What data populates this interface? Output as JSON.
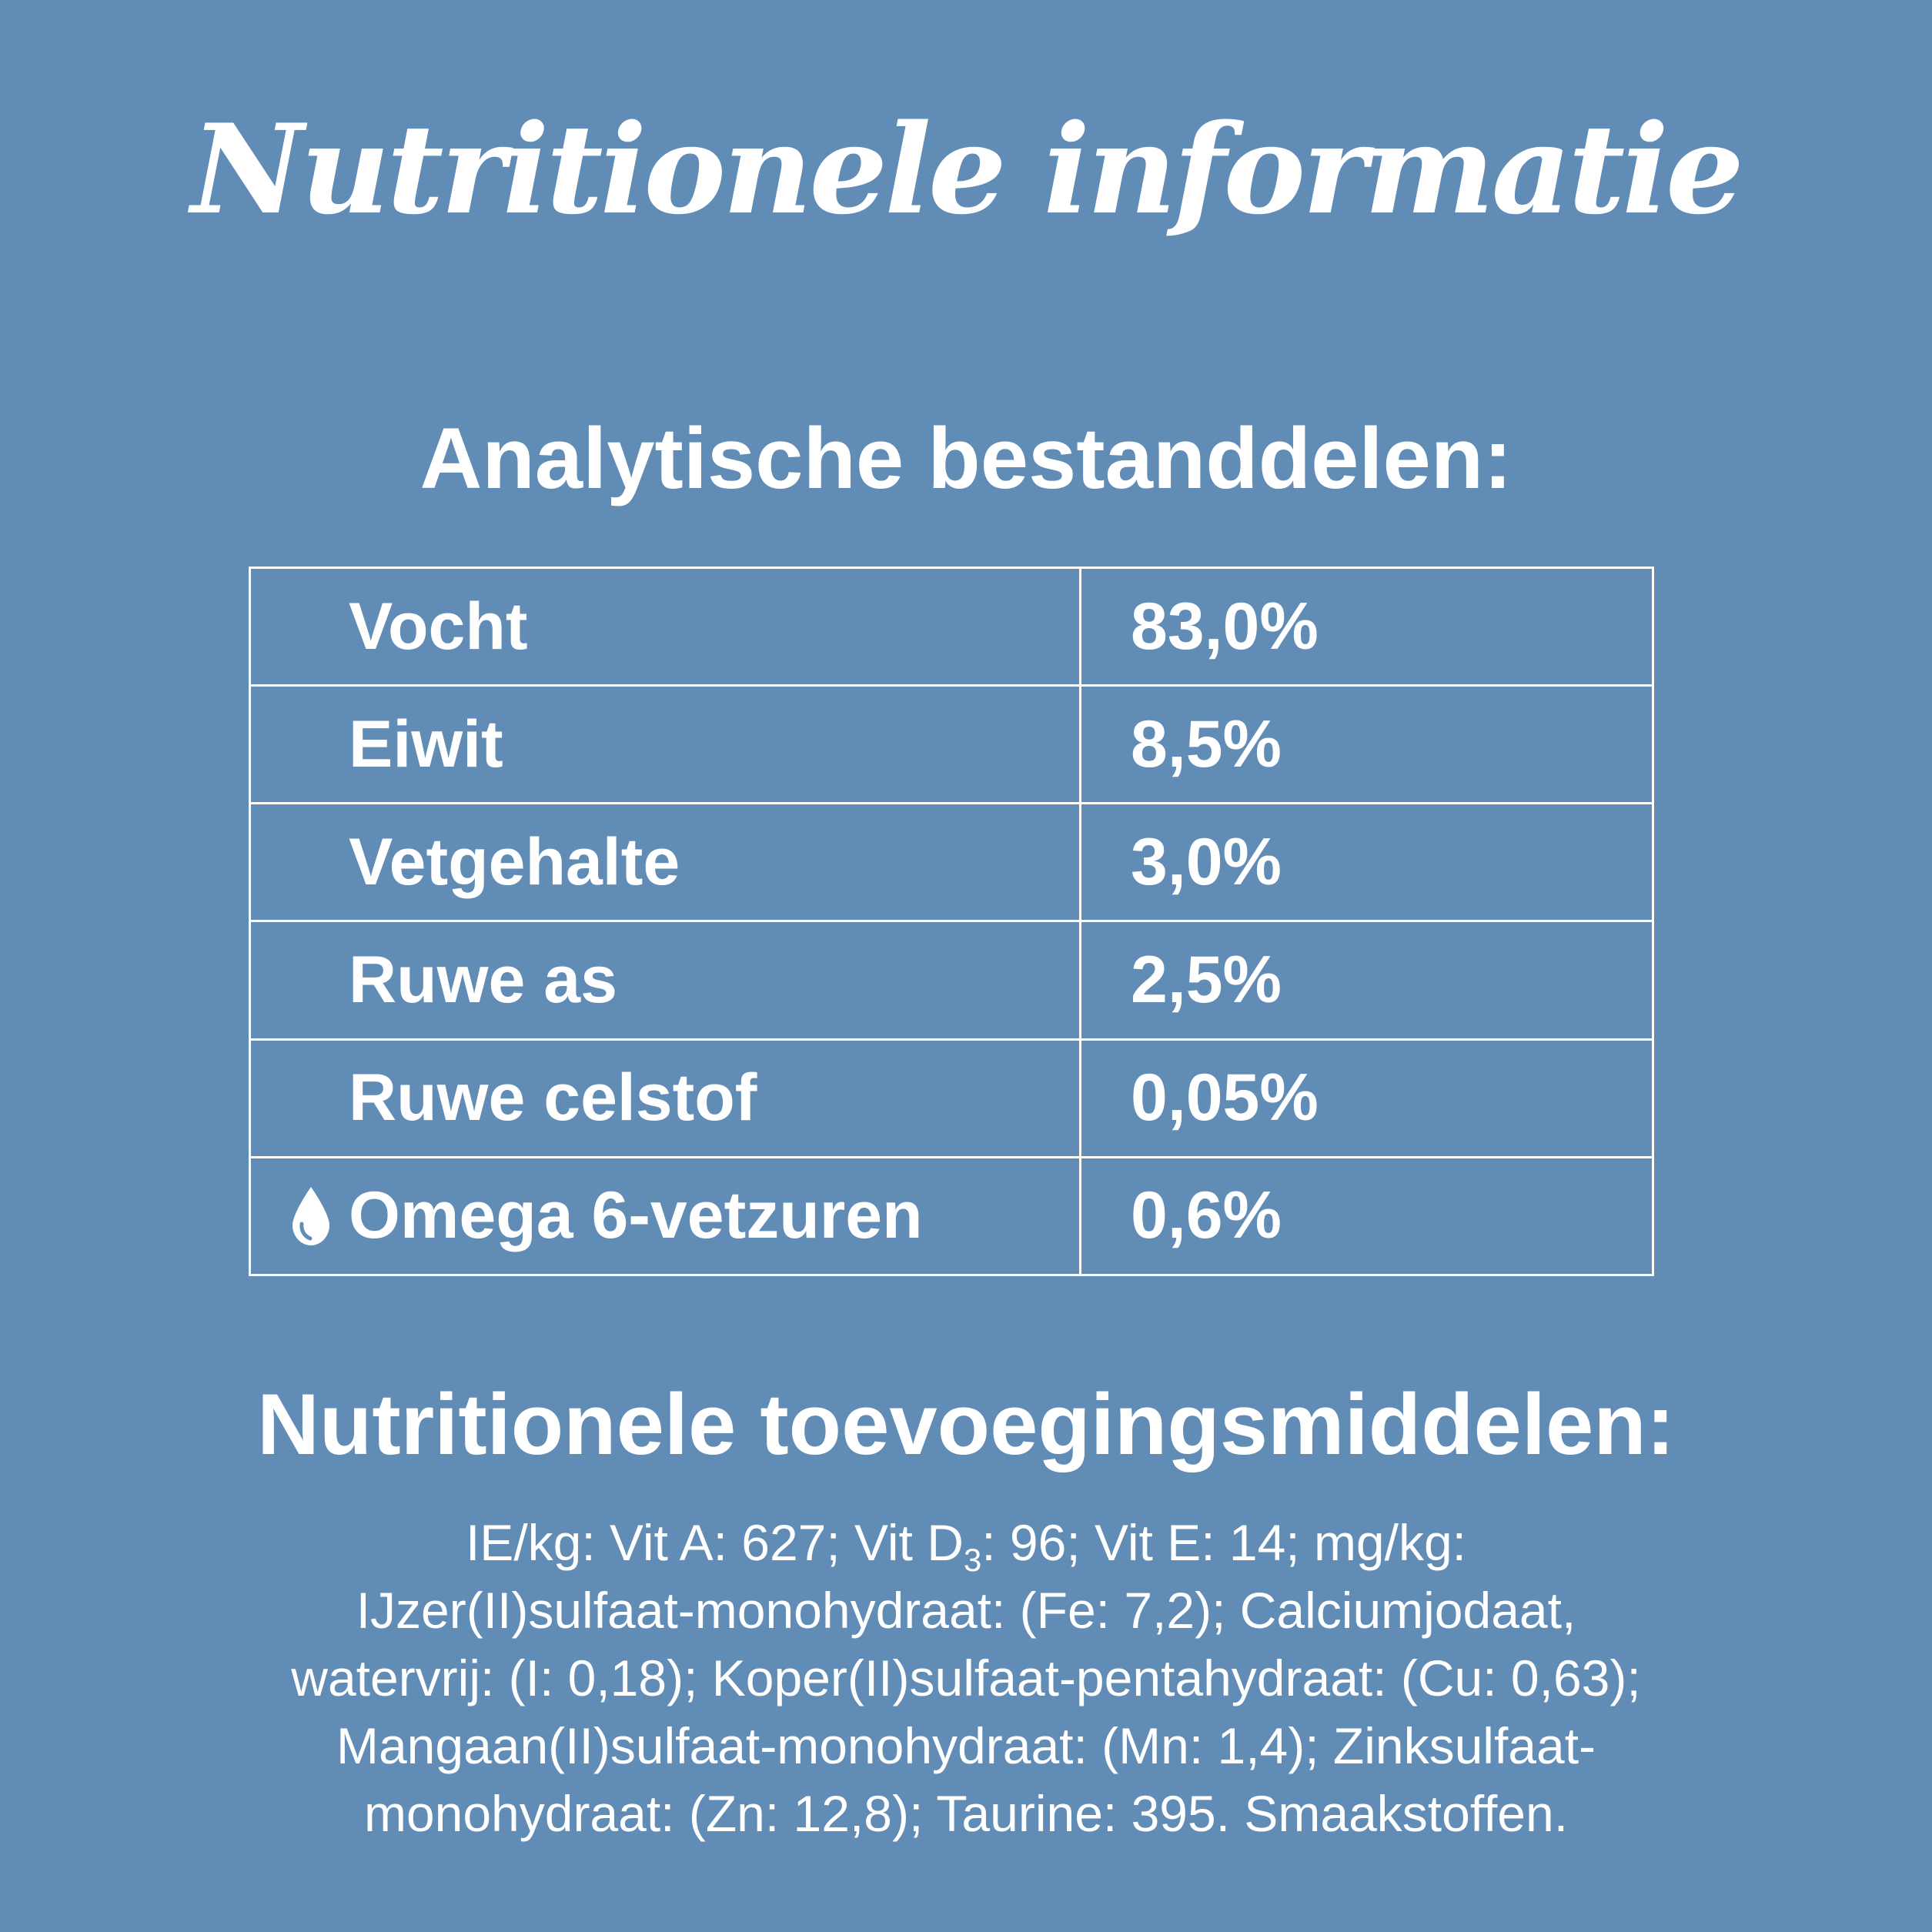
{
  "title": "Nutritionele informatie",
  "analytic": {
    "heading": "Analytische bestanddelen:",
    "rows": [
      {
        "name": "Vocht",
        "value": "83,0%",
        "icon": ""
      },
      {
        "name": "Eiwit",
        "value": "8,5%",
        "icon": ""
      },
      {
        "name": "Vetgehalte",
        "value": "3,0%",
        "icon": ""
      },
      {
        "name": "Ruwe as",
        "value": "2,5%",
        "icon": ""
      },
      {
        "name": "Ruwe celstof",
        "value": "0,05%",
        "icon": ""
      },
      {
        "name": "Omega 6-vetzuren",
        "value": "0,6%",
        "icon": "drop-icon"
      }
    ]
  },
  "additives": {
    "heading": "Nutritionele toevoegingsmiddelen:",
    "line1_before": "IE/kg: Vit A: 627; Vit D",
    "line1_sub": "3",
    "line1_after": ": 96; Vit E: 14; mg/kg:",
    "line2": "IJzer(II)sulfaat-monohydraat: (Fe: 7,2); Calciumjodaat,",
    "line3": "watervrij: (I: 0,18); Koper(II)sulfaat-pentahydraat: (Cu: 0,63);",
    "line4": "Mangaan(II)sulfaat-monohydraat: (Mn: 1,4); Zinksulfaat-",
    "line5": "monohydraat: (Zn: 12,8); Taurine: 395. Smaakstoffen."
  },
  "colors": {
    "background": "#608cb6",
    "text": "#ffffff"
  }
}
